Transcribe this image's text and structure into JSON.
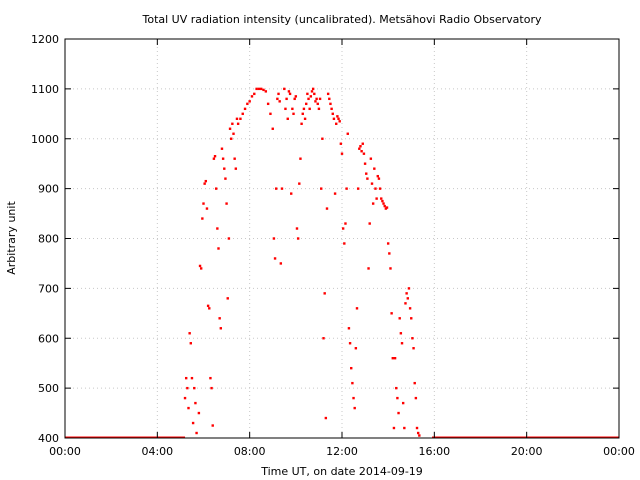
{
  "chart_data": {
    "type": "scatter",
    "title": "Total UV radiation intensity (uncalibrated). Metsähovi Radio Observatory",
    "xlabel": "Time UT, on date 2014-09-19",
    "ylabel": "Arbitrary unit",
    "xlim": [
      0,
      24
    ],
    "ylim": [
      400,
      1200
    ],
    "x_ticks": [
      0,
      4,
      8,
      12,
      16,
      20,
      24
    ],
    "x_tick_labels": [
      "00:00",
      "04:00",
      "08:00",
      "12:00",
      "16:00",
      "20:00",
      "00:00"
    ],
    "y_ticks": [
      400,
      500,
      600,
      700,
      800,
      900,
      1000,
      1100,
      1200
    ],
    "y_tick_labels": [
      "400",
      "500",
      "600",
      "700",
      "800",
      "900",
      "1000",
      "1100",
      "1200"
    ],
    "grid": true,
    "legend": "none",
    "marker_color": "#ff0000",
    "baseline": {
      "from": 0,
      "to": 5.2,
      "value": 401
    },
    "baseline_end": {
      "from": 15.9,
      "to": 24,
      "value": 401
    },
    "points": [
      [
        5.2,
        480
      ],
      [
        5.25,
        520
      ],
      [
        5.3,
        500
      ],
      [
        5.35,
        460
      ],
      [
        5.4,
        610
      ],
      [
        5.45,
        590
      ],
      [
        5.5,
        520
      ],
      [
        5.55,
        430
      ],
      [
        5.6,
        500
      ],
      [
        5.65,
        470
      ],
      [
        5.7,
        410
      ],
      [
        5.8,
        450
      ],
      [
        5.85,
        745
      ],
      [
        5.9,
        740
      ],
      [
        5.95,
        840
      ],
      [
        6.0,
        870
      ],
      [
        6.05,
        910
      ],
      [
        6.1,
        915
      ],
      [
        6.15,
        860
      ],
      [
        6.2,
        665
      ],
      [
        6.25,
        660
      ],
      [
        6.3,
        520
      ],
      [
        6.35,
        500
      ],
      [
        6.4,
        425
      ],
      [
        6.45,
        960
      ],
      [
        6.5,
        965
      ],
      [
        6.55,
        900
      ],
      [
        6.6,
        820
      ],
      [
        6.65,
        780
      ],
      [
        6.7,
        640
      ],
      [
        6.75,
        620
      ],
      [
        6.8,
        980
      ],
      [
        6.85,
        960
      ],
      [
        6.9,
        940
      ],
      [
        6.95,
        920
      ],
      [
        7.0,
        870
      ],
      [
        7.05,
        680
      ],
      [
        7.1,
        800
      ],
      [
        7.15,
        1020
      ],
      [
        7.2,
        1000
      ],
      [
        7.25,
        1030
      ],
      [
        7.3,
        1010
      ],
      [
        7.35,
        960
      ],
      [
        7.4,
        940
      ],
      [
        7.45,
        1040
      ],
      [
        7.5,
        1030
      ],
      [
        7.6,
        1040
      ],
      [
        7.7,
        1050
      ],
      [
        7.8,
        1060
      ],
      [
        7.9,
        1070
      ],
      [
        8.0,
        1075
      ],
      [
        8.1,
        1085
      ],
      [
        8.2,
        1090
      ],
      [
        8.3,
        1100
      ],
      [
        8.4,
        1100
      ],
      [
        8.5,
        1100
      ],
      [
        8.6,
        1098
      ],
      [
        8.7,
        1095
      ],
      [
        8.8,
        1070
      ],
      [
        8.9,
        1050
      ],
      [
        9.0,
        1020
      ],
      [
        9.05,
        800
      ],
      [
        9.1,
        760
      ],
      [
        9.15,
        900
      ],
      [
        9.2,
        1080
      ],
      [
        9.25,
        1090
      ],
      [
        9.3,
        1075
      ],
      [
        9.35,
        750
      ],
      [
        9.4,
        900
      ],
      [
        9.5,
        1100
      ],
      [
        9.55,
        1060
      ],
      [
        9.6,
        1080
      ],
      [
        9.65,
        1040
      ],
      [
        9.7,
        1095
      ],
      [
        9.75,
        1090
      ],
      [
        9.8,
        890
      ],
      [
        9.85,
        1060
      ],
      [
        9.9,
        1050
      ],
      [
        9.95,
        1080
      ],
      [
        10.0,
        1085
      ],
      [
        10.05,
        820
      ],
      [
        10.1,
        800
      ],
      [
        10.15,
        910
      ],
      [
        10.2,
        960
      ],
      [
        10.25,
        1030
      ],
      [
        10.3,
        1050
      ],
      [
        10.35,
        1060
      ],
      [
        10.4,
        1040
      ],
      [
        10.45,
        1070
      ],
      [
        10.5,
        1090
      ],
      [
        10.55,
        1080
      ],
      [
        10.6,
        1060
      ],
      [
        10.65,
        1085
      ],
      [
        10.7,
        1095
      ],
      [
        10.75,
        1100
      ],
      [
        10.8,
        1090
      ],
      [
        10.85,
        1075
      ],
      [
        10.9,
        1080
      ],
      [
        10.95,
        1070
      ],
      [
        11.0,
        1060
      ],
      [
        11.05,
        1080
      ],
      [
        11.1,
        900
      ],
      [
        11.15,
        1000
      ],
      [
        11.2,
        600
      ],
      [
        11.25,
        690
      ],
      [
        11.3,
        440
      ],
      [
        11.35,
        860
      ],
      [
        11.4,
        1090
      ],
      [
        11.45,
        1080
      ],
      [
        11.5,
        1070
      ],
      [
        11.55,
        1060
      ],
      [
        11.6,
        1050
      ],
      [
        11.65,
        1040
      ],
      [
        11.7,
        890
      ],
      [
        11.75,
        1030
      ],
      [
        11.8,
        1045
      ],
      [
        11.85,
        1040
      ],
      [
        11.9,
        1035
      ],
      [
        11.95,
        990
      ],
      [
        12.0,
        970
      ],
      [
        12.05,
        820
      ],
      [
        12.1,
        790
      ],
      [
        12.15,
        830
      ],
      [
        12.2,
        900
      ],
      [
        12.25,
        1010
      ],
      [
        12.3,
        620
      ],
      [
        12.35,
        590
      ],
      [
        12.4,
        540
      ],
      [
        12.45,
        510
      ],
      [
        12.5,
        480
      ],
      [
        12.55,
        460
      ],
      [
        12.6,
        580
      ],
      [
        12.65,
        660
      ],
      [
        12.7,
        900
      ],
      [
        12.75,
        980
      ],
      [
        12.8,
        985
      ],
      [
        12.85,
        975
      ],
      [
        12.9,
        990
      ],
      [
        12.95,
        970
      ],
      [
        13.0,
        950
      ],
      [
        13.05,
        930
      ],
      [
        13.1,
        920
      ],
      [
        13.15,
        740
      ],
      [
        13.2,
        830
      ],
      [
        13.25,
        960
      ],
      [
        13.3,
        910
      ],
      [
        13.35,
        870
      ],
      [
        13.4,
        940
      ],
      [
        13.45,
        900
      ],
      [
        13.5,
        880
      ],
      [
        13.55,
        925
      ],
      [
        13.6,
        920
      ],
      [
        13.65,
        900
      ],
      [
        13.7,
        880
      ],
      [
        13.75,
        875
      ],
      [
        13.8,
        870
      ],
      [
        13.85,
        865
      ],
      [
        13.9,
        860
      ],
      [
        13.95,
        862
      ],
      [
        14.0,
        790
      ],
      [
        14.05,
        770
      ],
      [
        14.1,
        740
      ],
      [
        14.15,
        650
      ],
      [
        14.2,
        560
      ],
      [
        14.25,
        420
      ],
      [
        14.3,
        560
      ],
      [
        14.35,
        500
      ],
      [
        14.4,
        480
      ],
      [
        14.45,
        450
      ],
      [
        14.5,
        640
      ],
      [
        14.55,
        610
      ],
      [
        14.6,
        590
      ],
      [
        14.65,
        470
      ],
      [
        14.7,
        420
      ],
      [
        14.75,
        670
      ],
      [
        14.8,
        690
      ],
      [
        14.85,
        680
      ],
      [
        14.9,
        700
      ],
      [
        14.95,
        660
      ],
      [
        15.0,
        640
      ],
      [
        15.05,
        600
      ],
      [
        15.1,
        580
      ],
      [
        15.15,
        510
      ],
      [
        15.2,
        480
      ],
      [
        15.25,
        420
      ],
      [
        15.3,
        410
      ],
      [
        15.35,
        405
      ]
    ]
  }
}
